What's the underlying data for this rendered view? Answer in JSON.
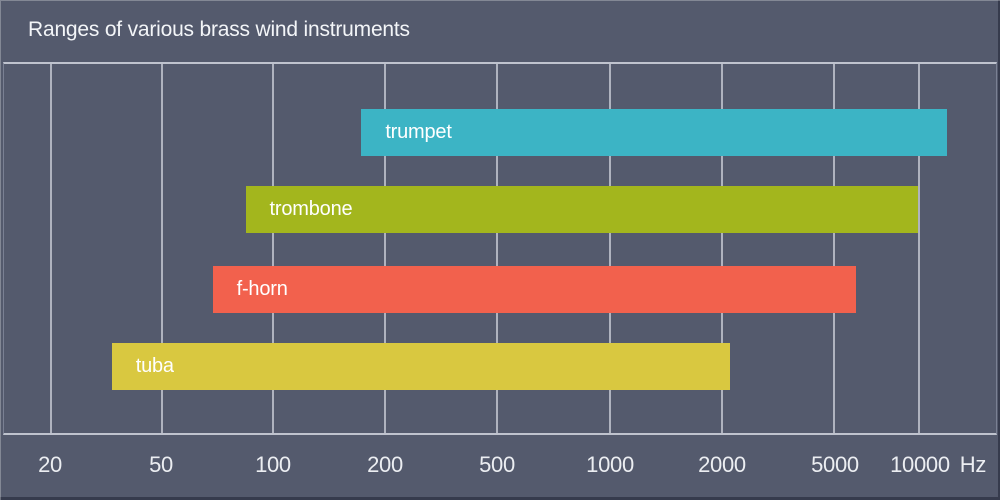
{
  "chart_data": {
    "type": "bar",
    "orientation": "horizontal-range",
    "title": "Ranges of various brass wind instruments",
    "x_unit": "Hz",
    "x_scale": "logarithmic-1-2-5-steps",
    "grid": "vertical-on",
    "x_ticks": [
      {
        "label": "20",
        "pos": 0.0473
      },
      {
        "label": "50",
        "pos": 0.159
      },
      {
        "label": "100",
        "pos": 0.2716
      },
      {
        "label": "200",
        "pos": 0.3843
      },
      {
        "label": "500",
        "pos": 0.497
      },
      {
        "label": "1000",
        "pos": 0.6107
      },
      {
        "label": "2000",
        "pos": 0.7233
      },
      {
        "label": "5000",
        "pos": 0.837
      },
      {
        "label": "10000",
        "pos": 0.9225
      }
    ],
    "series": [
      {
        "name": "trumpet",
        "low_hz": 170,
        "high_hz": 11500,
        "color": "#3cb4c5",
        "start": 0.3602,
        "end": 0.9507
      },
      {
        "name": "trombone",
        "low_hz": 85,
        "high_hz": 10000,
        "color": "#a3b61d",
        "start": 0.2435,
        "end": 0.9215
      },
      {
        "name": "f-horn",
        "low_hz": 65,
        "high_hz": 6000,
        "color": "#f2614d",
        "start": 0.2103,
        "end": 0.8592
      },
      {
        "name": "tuba",
        "low_hz": 33,
        "high_hz": 2100,
        "color": "#d9c840",
        "start": 0.1086,
        "end": 0.7314
      }
    ],
    "bar_top_fracs": [
      0.1206,
      0.3298,
      0.5469,
      0.756
    ],
    "bar_height_frac": 0.1287
  },
  "colors": {
    "background": "#545a6d",
    "grid": "#bfc3ce",
    "title_text": "#f3f5f8",
    "tick_text": "#eceef2",
    "bar_text": "#ffffff"
  }
}
